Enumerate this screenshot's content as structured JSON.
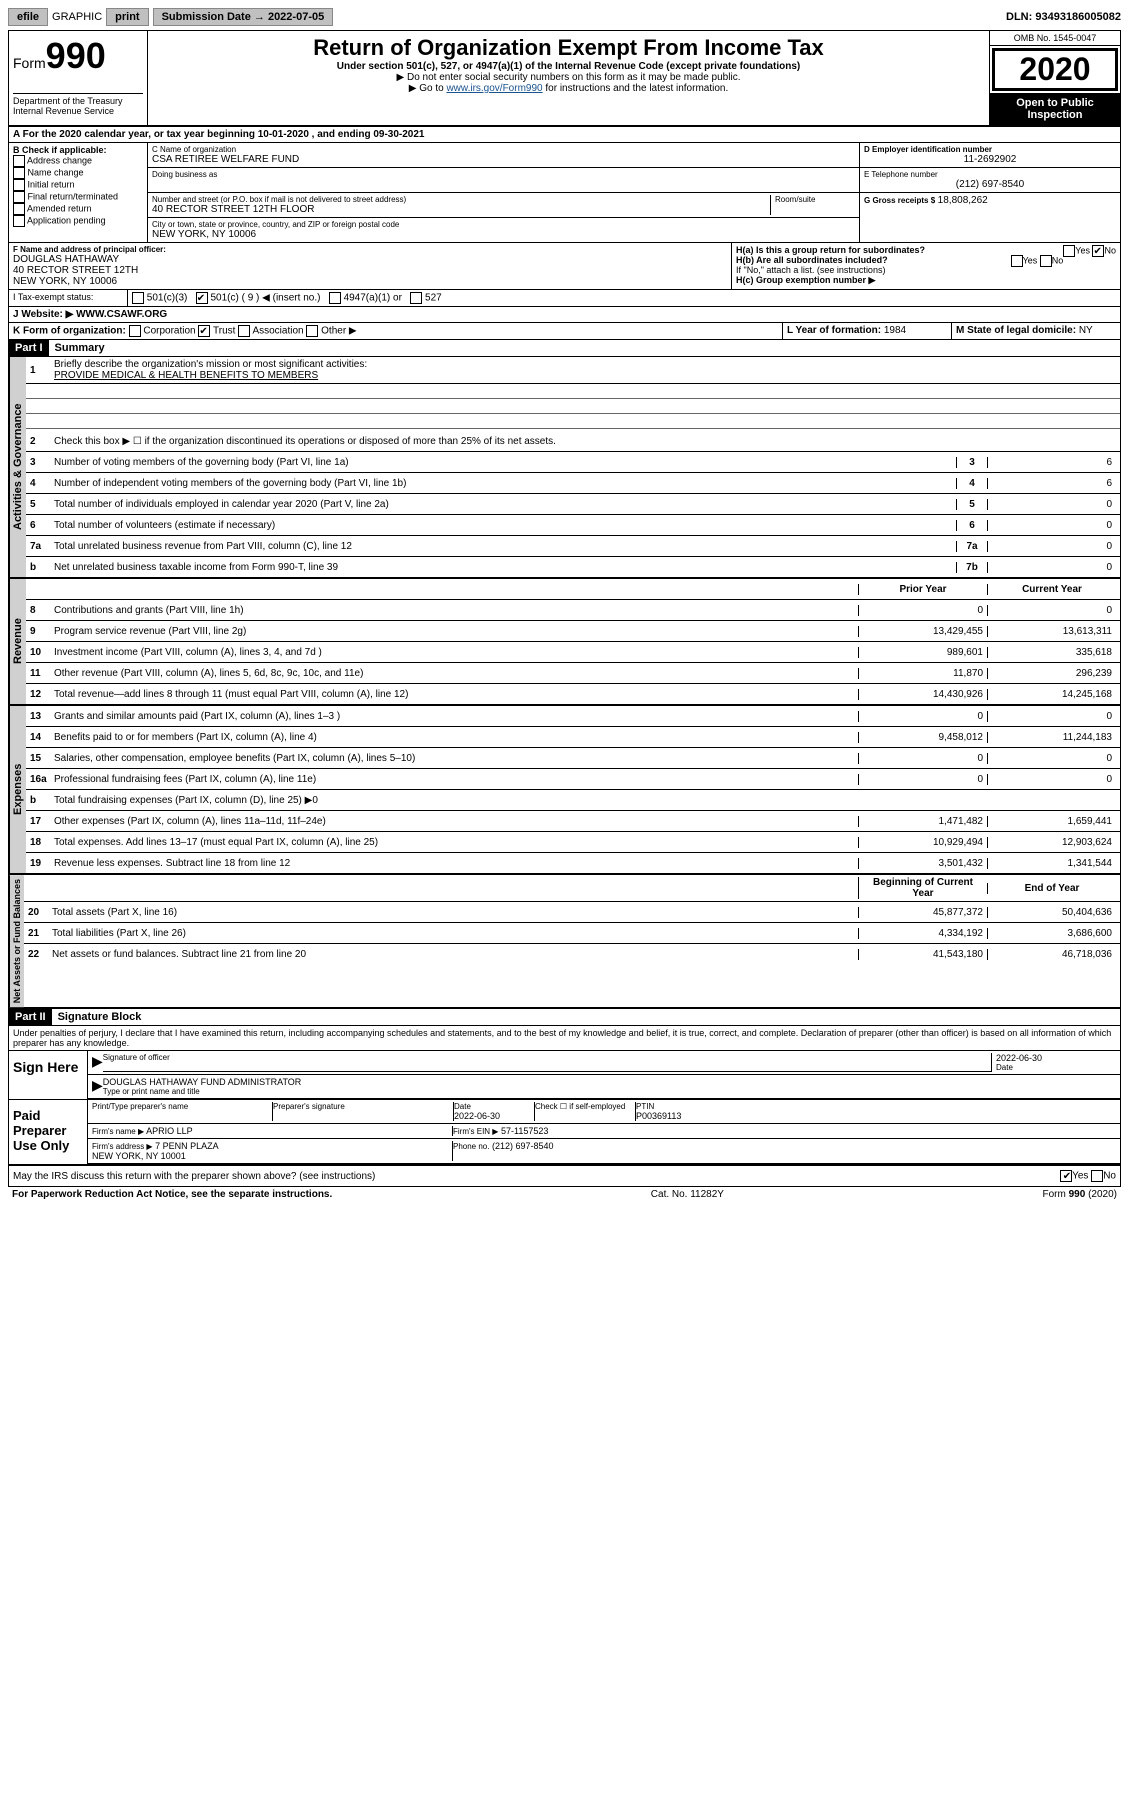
{
  "topbar": {
    "efile": "efile",
    "graphic": "GRAPHIC",
    "print": "print",
    "subdate_label": "Submission Date → 2022-07-05",
    "dln": "DLN: 93493186005082"
  },
  "header": {
    "form_label": "Form",
    "form_num": "990",
    "dept": "Department of the Treasury\nInternal Revenue Service",
    "title": "Return of Organization Exempt From Income Tax",
    "sub": "Under section 501(c), 527, or 4947(a)(1) of the Internal Revenue Code (except private foundations)",
    "inst1": "▶ Do not enter social security numbers on this form as it may be made public.",
    "inst2_pre": "▶ Go to ",
    "inst2_link": "www.irs.gov/Form990",
    "inst2_post": " for instructions and the latest information.",
    "omb": "OMB No. 1545-0047",
    "year": "2020",
    "inspection": "Open to Public Inspection"
  },
  "taxyear": "For the 2020 calendar year, or tax year beginning 10-01-2020       , and ending 09-30-2021",
  "checkB": {
    "label": "B Check if applicable:",
    "items": [
      "Address change",
      "Name change",
      "Initial return",
      "Final return/terminated",
      "Amended return",
      "Application pending"
    ]
  },
  "orgC": {
    "name_label": "C Name of organization",
    "name": "CSA RETIREE WELFARE FUND",
    "dba_label": "Doing business as",
    "street_label": "Number and street (or P.O. box if mail is not delivered to street address)",
    "room_label": "Room/suite",
    "street": "40 RECTOR STREET 12TH FLOOR",
    "city_label": "City or town, state or province, country, and ZIP or foreign postal code",
    "city": "NEW YORK, NY  10006"
  },
  "colD": {
    "ein_label": "D Employer identification number",
    "ein": "11-2692902",
    "phone_label": "E Telephone number",
    "phone": "(212) 697-8540",
    "gross_label": "G Gross receipts $",
    "gross": "18,808,262"
  },
  "sectionF": {
    "label": "F Name and address of principal officer:",
    "name": "DOUGLAS HATHAWAY",
    "addr1": "40 RECTOR STREET 12TH",
    "addr2": "NEW YORK, NY  10006"
  },
  "sectionH": {
    "a_label": "H(a)  Is this a group return for subordinates?",
    "b_label": "H(b)  Are all subordinates included?",
    "b_note": "If \"No,\" attach a list. (see instructions)",
    "c_label": "H(c)  Group exemption number ▶"
  },
  "taxstatus": {
    "label": "Tax-exempt status:",
    "opts": [
      "501(c)(3)",
      "501(c) ( 9 ) ◀ (insert no.)",
      "4947(a)(1) or",
      "527"
    ]
  },
  "website": {
    "label": "J  Website: ▶",
    "val": "WWW.CSAWF.ORG"
  },
  "formK": {
    "label": "K Form of organization:",
    "opts": [
      "Corporation",
      "Trust",
      "Association",
      "Other ▶"
    ]
  },
  "yearL": {
    "label": "L Year of formation:",
    "val": "1984"
  },
  "stateM": {
    "label": "M State of legal domicile:",
    "val": "NY"
  },
  "part1": {
    "label": "Part I",
    "title": "Summary"
  },
  "summary": {
    "mission_label": "Briefly describe the organization's mission or most significant activities:",
    "mission": "PROVIDE MEDICAL & HEALTH BENEFITS TO MEMBERS",
    "line2": "Check this box ▶ ☐ if the organization discontinued its operations or disposed of more than 25% of its net assets.",
    "rows_ag": [
      {
        "n": "3",
        "t": "Number of voting members of the governing body (Part VI, line 1a)",
        "b": "3",
        "v": "6"
      },
      {
        "n": "4",
        "t": "Number of independent voting members of the governing body (Part VI, line 1b)",
        "b": "4",
        "v": "6"
      },
      {
        "n": "5",
        "t": "Total number of individuals employed in calendar year 2020 (Part V, line 2a)",
        "b": "5",
        "v": "0"
      },
      {
        "n": "6",
        "t": "Total number of volunteers (estimate if necessary)",
        "b": "6",
        "v": "0"
      },
      {
        "n": "7a",
        "t": "Total unrelated business revenue from Part VIII, column (C), line 12",
        "b": "7a",
        "v": "0"
      },
      {
        "n": "b",
        "t": "Net unrelated business taxable income from Form 990-T, line 39",
        "b": "7b",
        "v": "0"
      }
    ],
    "col_hdr_prior": "Prior Year",
    "col_hdr_curr": "Current Year",
    "rows_rev": [
      {
        "n": "8",
        "t": "Contributions and grants (Part VIII, line 1h)",
        "p": "0",
        "c": "0"
      },
      {
        "n": "9",
        "t": "Program service revenue (Part VIII, line 2g)",
        "p": "13,429,455",
        "c": "13,613,311"
      },
      {
        "n": "10",
        "t": "Investment income (Part VIII, column (A), lines 3, 4, and 7d )",
        "p": "989,601",
        "c": "335,618"
      },
      {
        "n": "11",
        "t": "Other revenue (Part VIII, column (A), lines 5, 6d, 8c, 9c, 10c, and 11e)",
        "p": "11,870",
        "c": "296,239"
      },
      {
        "n": "12",
        "t": "Total revenue—add lines 8 through 11 (must equal Part VIII, column (A), line 12)",
        "p": "14,430,926",
        "c": "14,245,168"
      }
    ],
    "rows_exp": [
      {
        "n": "13",
        "t": "Grants and similar amounts paid (Part IX, column (A), lines 1–3 )",
        "p": "0",
        "c": "0"
      },
      {
        "n": "14",
        "t": "Benefits paid to or for members (Part IX, column (A), line 4)",
        "p": "9,458,012",
        "c": "11,244,183"
      },
      {
        "n": "15",
        "t": "Salaries, other compensation, employee benefits (Part IX, column (A), lines 5–10)",
        "p": "0",
        "c": "0"
      },
      {
        "n": "16a",
        "t": "Professional fundraising fees (Part IX, column (A), line 11e)",
        "p": "0",
        "c": "0"
      },
      {
        "n": "b",
        "t": "Total fundraising expenses (Part IX, column (D), line 25) ▶0",
        "p": "",
        "c": ""
      },
      {
        "n": "17",
        "t": "Other expenses (Part IX, column (A), lines 11a–11d, 11f–24e)",
        "p": "1,471,482",
        "c": "1,659,441"
      },
      {
        "n": "18",
        "t": "Total expenses. Add lines 13–17 (must equal Part IX, column (A), line 25)",
        "p": "10,929,494",
        "c": "12,903,624"
      },
      {
        "n": "19",
        "t": "Revenue less expenses. Subtract line 18 from line 12",
        "p": "3,501,432",
        "c": "1,341,544"
      }
    ],
    "col_hdr_beg": "Beginning of Current Year",
    "col_hdr_end": "End of Year",
    "rows_na": [
      {
        "n": "20",
        "t": "Total assets (Part X, line 16)",
        "p": "45,877,372",
        "c": "50,404,636"
      },
      {
        "n": "21",
        "t": "Total liabilities (Part X, line 26)",
        "p": "4,334,192",
        "c": "3,686,600"
      },
      {
        "n": "22",
        "t": "Net assets or fund balances. Subtract line 21 from line 20",
        "p": "41,543,180",
        "c": "46,718,036"
      }
    ]
  },
  "sidelabels": {
    "ag": "Activities & Governance",
    "rev": "Revenue",
    "exp": "Expenses",
    "na": "Net Assets or Fund Balances"
  },
  "part2": {
    "label": "Part II",
    "title": "Signature Block"
  },
  "perjury": "Under penalties of perjury, I declare that I have examined this return, including accompanying schedules and statements, and to the best of my knowledge and belief, it is true, correct, and complete. Declaration of preparer (other than officer) is based on all information of which preparer has any knowledge.",
  "sign": {
    "here": "Sign Here",
    "sig_label": "Signature of officer",
    "date": "2022-06-30",
    "date_label": "Date",
    "name": "DOUGLAS HATHAWAY FUND ADMINISTRATOR",
    "type_label": "Type or print name and title"
  },
  "paid": {
    "label": "Paid Preparer Use Only",
    "r1": {
      "a": "Print/Type preparer's name",
      "b": "Preparer's signature",
      "c": "Date",
      "d": "2022-06-30",
      "e": "Check ☐ if self-employed",
      "f": "PTIN",
      "g": "P00369113"
    },
    "firm_label": "Firm's name  ▶",
    "firm": "APRIO LLP",
    "ein_label": "Firm's EIN ▶",
    "ein": "57-1157523",
    "addr_label": "Firm's address  ▶",
    "addr1": "7 PENN PLAZA",
    "addr2": "NEW YORK, NY  10001",
    "phone_label": "Phone no.",
    "phone": "(212) 697-8540"
  },
  "discuss": "May the IRS discuss this return with the preparer shown above? (see instructions)",
  "footer": {
    "left": "For Paperwork Reduction Act Notice, see the separate instructions.",
    "mid": "Cat. No. 11282Y",
    "right": "Form 990 (2020)"
  },
  "yesno": {
    "yes": "Yes",
    "no": "No"
  }
}
